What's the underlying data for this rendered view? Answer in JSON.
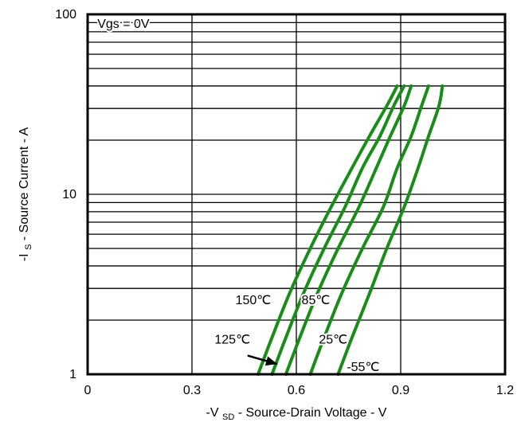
{
  "chart_data": {
    "type": "line",
    "title": "",
    "xlabel": {
      "prefix": "-V",
      "subscript": "SD",
      "suffix": " - Source-Drain Voltage - V"
    },
    "ylabel": {
      "prefix": "-I",
      "subscript": "S",
      "suffix": " - Source Current - A"
    },
    "xlim": [
      0,
      1.2
    ],
    "ylim": [
      1,
      100
    ],
    "yscale": "log",
    "grid": true,
    "xticks": [
      "0",
      "0.3",
      "0.6",
      "0.9",
      "1.2"
    ],
    "yticks": [
      "1",
      "10",
      "100"
    ],
    "annotation": "Vgs = 0V",
    "series_color": "#1a8c1a",
    "series": [
      {
        "name": "150℃",
        "x": [
          0.49,
          0.53,
          0.58,
          0.64,
          0.7,
          0.76,
          0.81,
          0.86,
          0.89
        ],
        "y": [
          1,
          1.6,
          2.8,
          5,
          8.5,
          14,
          21,
          31,
          40
        ]
      },
      {
        "name": "125℃",
        "x": [
          0.53,
          0.57,
          0.62,
          0.68,
          0.74,
          0.79,
          0.84,
          0.88,
          0.91
        ],
        "y": [
          1,
          1.6,
          2.8,
          5,
          8.5,
          14,
          21,
          31,
          40
        ]
      },
      {
        "name": "85℃",
        "x": [
          0.57,
          0.61,
          0.66,
          0.72,
          0.78,
          0.83,
          0.87,
          0.91,
          0.93
        ],
        "y": [
          1,
          1.6,
          2.8,
          5,
          8.5,
          14,
          21,
          31,
          40
        ]
      },
      {
        "name": "25℃",
        "x": [
          0.64,
          0.68,
          0.73,
          0.79,
          0.85,
          0.89,
          0.93,
          0.96,
          0.98
        ],
        "y": [
          1,
          1.6,
          2.8,
          5,
          8.5,
          14,
          21,
          31,
          40
        ]
      },
      {
        "name": "-55℃",
        "x": [
          0.72,
          0.76,
          0.81,
          0.86,
          0.91,
          0.95,
          0.98,
          1.01,
          1.02
        ],
        "y": [
          1,
          1.6,
          2.8,
          5,
          8.5,
          14,
          21,
          31,
          40
        ]
      }
    ]
  }
}
